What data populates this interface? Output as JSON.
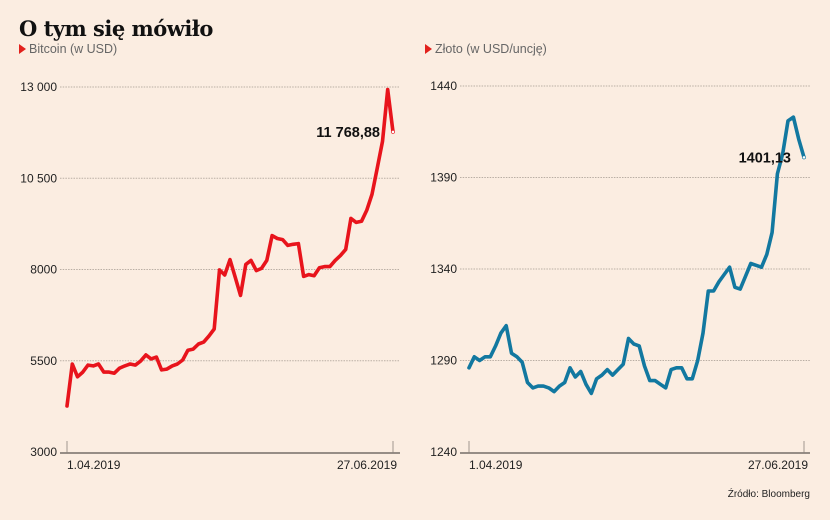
{
  "title": "O tym się mówiło",
  "source": "Źródło: Bloomberg",
  "colors": {
    "bitcoin": "#e8141c",
    "gold": "#1278a0",
    "background": "#fbede1",
    "marker": "#e2211c"
  },
  "chart_data": [
    {
      "type": "line",
      "subtitle": "Bitcoin (w USD)",
      "x_labels": [
        "1.04.2019",
        "27.06.2019"
      ],
      "yticks": [
        3000,
        5500,
        8000,
        10500,
        13000
      ],
      "ytick_labels": [
        "3000",
        "5500",
        "8000",
        "10 500",
        "13 000"
      ],
      "ylim": [
        3000,
        13000
      ],
      "grid": true,
      "last_value_label": "11 768,88",
      "series": [
        {
          "name": "Bitcoin",
          "values": [
            4260,
            5410,
            5060,
            5190,
            5380,
            5360,
            5410,
            5190,
            5190,
            5160,
            5300,
            5360,
            5410,
            5380,
            5490,
            5660,
            5550,
            5600,
            5250,
            5270,
            5360,
            5410,
            5520,
            5790,
            5820,
            5960,
            6010,
            6180,
            6370,
            7990,
            7850,
            8270,
            7780,
            7290,
            8140,
            8250,
            7970,
            8030,
            8250,
            8930,
            8850,
            8820,
            8660,
            8690,
            8710,
            7810,
            7860,
            7830,
            8050,
            8080,
            8080,
            8250,
            8380,
            8550,
            9400,
            9290,
            9320,
            9620,
            10060,
            10770,
            11510,
            12930,
            11770
          ]
        }
      ]
    },
    {
      "type": "line",
      "subtitle": "Złoto (w USD/uncję)",
      "x_labels": [
        "1.04.2019",
        "27.06.2019"
      ],
      "yticks": [
        1240,
        1290,
        1340,
        1390,
        1440
      ],
      "ytick_labels": [
        "1240",
        "1290",
        "1340",
        "1390",
        "1440"
      ],
      "ylim": [
        1240,
        1440
      ],
      "grid": true,
      "last_value_label": "1401,13",
      "series": [
        {
          "name": "Złoto",
          "values": [
            1286,
            1292,
            1290,
            1292,
            1292,
            1298,
            1305,
            1309,
            1294,
            1292,
            1289,
            1278,
            1275,
            1276,
            1276,
            1275,
            1273,
            1276,
            1278,
            1286,
            1281,
            1284,
            1277,
            1272,
            1280,
            1282,
            1285,
            1282,
            1285,
            1288,
            1302,
            1299,
            1298,
            1287,
            1279,
            1279,
            1277,
            1275,
            1285,
            1286,
            1286,
            1280,
            1280,
            1290,
            1305,
            1328,
            1328,
            1333,
            1337,
            1341,
            1330,
            1329,
            1336,
            1343,
            1342,
            1341,
            1348,
            1360,
            1392,
            1403,
            1421,
            1423,
            1411,
            1401
          ]
        }
      ]
    }
  ]
}
